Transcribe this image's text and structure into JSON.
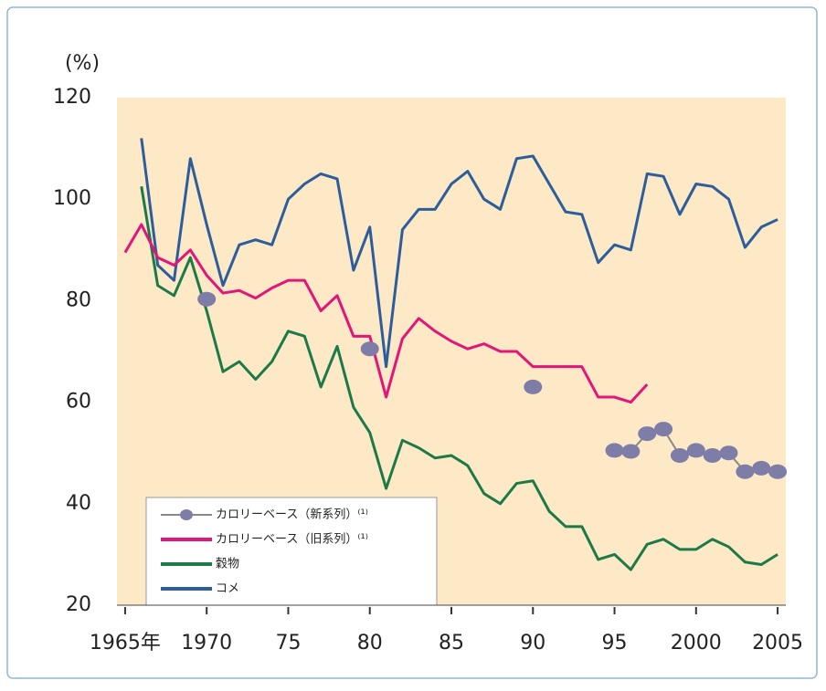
{
  "chart_data": {
    "type": "line",
    "y_label": "(%)",
    "x": [
      1965,
      1966,
      1967,
      1968,
      1969,
      1970,
      1971,
      1972,
      1973,
      1974,
      1975,
      1976,
      1977,
      1978,
      1979,
      1980,
      1981,
      1982,
      1983,
      1984,
      1985,
      1986,
      1987,
      1988,
      1989,
      1990,
      1991,
      1992,
      1993,
      1994,
      1995,
      1996,
      1997,
      1998,
      1999,
      2000,
      2001,
      2002,
      2003,
      2004,
      2005
    ],
    "xlim": [
      1964.5,
      2005.5
    ],
    "xticks": [
      {
        "value": 1965,
        "label": "1965年"
      },
      1970,
      {
        "value": 1975,
        "label": "75"
      },
      {
        "value": 1980,
        "label": "80"
      },
      {
        "value": 1985,
        "label": "85"
      },
      {
        "value": 1990,
        "label": "90"
      },
      {
        "value": 1995,
        "label": "95"
      },
      2000,
      2005
    ],
    "ylim": [
      20,
      120
    ],
    "yticks": [
      20,
      40,
      60,
      80,
      100,
      120
    ],
    "series": [
      {
        "name": "カロリーベース（新系列）⁽¹⁾",
        "color": "#7d7da8",
        "markers": true,
        "values": [
          null,
          null,
          null,
          null,
          null,
          80.3,
          null,
          null,
          null,
          null,
          null,
          null,
          null,
          null,
          null,
          70.5,
          null,
          null,
          null,
          null,
          null,
          null,
          null,
          null,
          null,
          63,
          null,
          null,
          null,
          null,
          50.5,
          50.3,
          53.8,
          54.7,
          49.5,
          50.5,
          49.5,
          50,
          46.3,
          47,
          46.3
        ]
      },
      {
        "name": "カロリーベース（旧系列）⁽¹⁾",
        "color": "#e2157b",
        "values": [
          89.5,
          95,
          88.5,
          87,
          90,
          85,
          81.5,
          82,
          80.5,
          82.5,
          84,
          84,
          78,
          81,
          73,
          73,
          61,
          72.5,
          76.5,
          74,
          72,
          70.5,
          71.5,
          70,
          70,
          67,
          67,
          67,
          67,
          61,
          61,
          60,
          63.5,
          null,
          null,
          null,
          null,
          null,
          null,
          null,
          null
        ]
      },
      {
        "name": "穀物",
        "color": "#1b7a47",
        "values": [
          null,
          102.5,
          83,
          81,
          88.5,
          78,
          66,
          68,
          64.5,
          68,
          74,
          73,
          63,
          71,
          59,
          54,
          43,
          52.5,
          51,
          49,
          49.5,
          47.5,
          42,
          40,
          44,
          44.5,
          38.5,
          35.5,
          35.5,
          29,
          30,
          27,
          32,
          33,
          31,
          31,
          33,
          31.5,
          28.5,
          28,
          30
        ]
      },
      {
        "name": "コメ",
        "color": "#2c5d9c",
        "values": [
          null,
          112,
          87,
          84,
          108,
          95,
          83,
          91,
          92,
          91,
          100,
          103,
          105,
          104,
          86,
          94.5,
          67,
          94,
          98,
          98,
          103,
          105.5,
          100,
          98,
          108,
          108.5,
          103,
          97.5,
          97,
          87.5,
          91,
          90,
          105,
          104.5,
          97,
          103,
          102.5,
          100,
          90.5,
          94.5,
          96
        ]
      }
    ]
  }
}
